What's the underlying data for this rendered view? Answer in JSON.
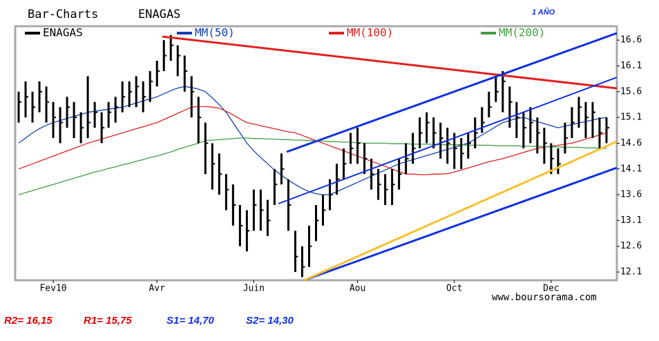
{
  "chart_data": {
    "type": "ohlc",
    "title": "Bar-Charts",
    "subtitle": "ENAGAS",
    "period": "1 AÑO",
    "source": "www.boursorama.com",
    "annotations": [
      {
        "text": "R2= 16,15",
        "color": "#e00000"
      },
      {
        "text": "R1= 15,75",
        "color": "#e00000"
      },
      {
        "text": "S1= 14,70",
        "color": "#1030e0"
      },
      {
        "text": "S2= 14,30",
        "color": "#1030e0"
      }
    ],
    "categories": [
      null,
      null,
      null,
      null,
      null,
      "Fev10",
      null,
      null,
      null,
      null,
      null,
      null,
      null,
      null,
      null,
      null,
      null,
      null,
      null,
      null,
      "Avr",
      null,
      null,
      null,
      null,
      null,
      null,
      null,
      null,
      null,
      null,
      null,
      null,
      null,
      "Juin",
      null,
      null,
      null,
      null,
      null,
      null,
      null,
      null,
      null,
      null,
      null,
      null,
      null,
      null,
      "Aou",
      null,
      null,
      null,
      null,
      null,
      null,
      null,
      null,
      null,
      null,
      null,
      null,
      null,
      "Oct",
      null,
      null,
      null,
      null,
      null,
      null,
      null,
      null,
      null,
      null,
      null,
      null,
      null,
      "Dec",
      null,
      null,
      null,
      null,
      null,
      null,
      null,
      null,
      null
    ],
    "series": [
      {
        "name": "ENAGAS",
        "color": "#000000",
        "values": [
          15.4,
          15.5,
          15.3,
          15.6,
          15.4,
          15.1,
          15.0,
          15.3,
          15.1,
          14.9,
          15.0,
          15.2,
          14.9,
          15.2,
          15.3,
          15.5,
          15.6,
          15.7,
          15.5,
          15.8,
          16.0,
          16.3,
          16.5,
          16.3,
          16.0,
          15.6,
          15.1,
          14.6,
          14.2,
          14.0,
          13.7,
          13.4,
          13.0,
          12.9,
          13.4,
          13.3,
          13.1,
          13.8,
          14.1,
          13.4,
          12.4,
          12.2,
          12.6,
          13.1,
          13.3,
          13.6,
          13.9,
          14.2,
          14.5,
          14.6,
          14.3,
          14.0,
          13.8,
          13.7,
          13.8,
          14.0,
          14.3,
          14.5,
          14.8,
          15.0,
          14.8,
          14.7,
          14.6,
          14.5,
          14.4,
          14.6,
          14.8,
          15.0,
          15.3,
          15.6,
          15.8,
          15.4,
          15.1,
          14.9,
          15.0,
          14.8,
          14.6,
          14.3,
          14.2,
          14.7,
          15.0,
          15.3,
          15.1,
          15.2,
          14.8,
          14.9,
          null
        ],
        "high": [
          15.6,
          15.8,
          15.6,
          15.8,
          15.7,
          15.4,
          15.3,
          15.5,
          15.4,
          15.2,
          15.9,
          15.4,
          15.2,
          15.4,
          15.5,
          15.8,
          15.8,
          15.9,
          15.8,
          16.0,
          16.2,
          16.6,
          16.7,
          16.5,
          16.3,
          15.9,
          15.5,
          15.0,
          14.6,
          14.4,
          14.0,
          13.8,
          13.4,
          13.3,
          13.7,
          13.7,
          13.5,
          14.1,
          14.4,
          13.9,
          12.9,
          12.6,
          13.0,
          13.4,
          13.6,
          13.9,
          14.2,
          14.5,
          14.8,
          14.9,
          14.6,
          14.3,
          14.1,
          14.0,
          14.1,
          14.3,
          14.6,
          14.8,
          15.1,
          15.2,
          15.1,
          15.0,
          14.9,
          14.8,
          14.7,
          14.8,
          15.1,
          15.3,
          15.6,
          15.9,
          16.0,
          15.7,
          15.4,
          15.2,
          15.3,
          15.1,
          14.9,
          14.6,
          14.5,
          15.0,
          15.3,
          15.5,
          15.4,
          15.4,
          15.1,
          15.1,
          null
        ],
        "low": [
          15.0,
          15.1,
          15.0,
          15.2,
          15.0,
          14.7,
          14.6,
          14.9,
          14.7,
          14.6,
          14.7,
          14.9,
          14.6,
          14.9,
          15.0,
          15.2,
          15.3,
          15.3,
          15.2,
          15.4,
          15.7,
          16.0,
          16.2,
          15.9,
          15.6,
          15.1,
          14.6,
          14.0,
          13.7,
          13.6,
          13.3,
          13.0,
          12.6,
          12.5,
          12.9,
          12.9,
          12.8,
          13.4,
          13.8,
          12.9,
          12.1,
          12.0,
          12.2,
          12.7,
          13.0,
          13.3,
          13.6,
          13.9,
          14.2,
          14.2,
          14.0,
          13.7,
          13.5,
          13.4,
          13.4,
          13.7,
          14.0,
          14.2,
          14.5,
          14.6,
          14.5,
          14.3,
          14.2,
          14.1,
          14.1,
          14.3,
          14.5,
          14.8,
          15.1,
          15.4,
          15.2,
          14.9,
          14.7,
          14.5,
          14.6,
          14.4,
          14.2,
          14.0,
          14.0,
          14.4,
          14.7,
          14.9,
          14.7,
          14.7,
          14.5,
          14.6,
          null
        ]
      },
      {
        "name": "MM(50)",
        "color": "#1040b0",
        "values": [
          14.6,
          14.7,
          14.8,
          14.88,
          14.95,
          15.0,
          15.04,
          15.08,
          15.12,
          15.16,
          15.2,
          15.22,
          15.24,
          15.26,
          15.28,
          15.3,
          15.34,
          15.38,
          15.42,
          15.46,
          15.5,
          15.56,
          15.62,
          15.67,
          15.7,
          15.68,
          15.65,
          15.6,
          15.48,
          15.35,
          15.2,
          15.0,
          14.8,
          14.6,
          14.45,
          14.32,
          14.2,
          14.08,
          13.98,
          13.88,
          13.8,
          13.72,
          13.66,
          13.62,
          13.6,
          13.6,
          13.66,
          13.72,
          13.78,
          13.84,
          13.9,
          13.96,
          14.02,
          14.08,
          14.14,
          14.2,
          14.24,
          14.28,
          14.32,
          14.36,
          14.4,
          14.44,
          14.48,
          14.52,
          14.56,
          14.6,
          14.68,
          14.76,
          14.84,
          14.92,
          15.0,
          15.04,
          15.08,
          15.1,
          15.06,
          15.02,
          14.98,
          14.94,
          14.9,
          14.93,
          14.96,
          14.99,
          15.02,
          15.05,
          15.08,
          15.1,
          null
        ]
      },
      {
        "name": "MM(100)",
        "color": "#e02020",
        "values": [
          14.1,
          14.15,
          14.2,
          14.25,
          14.3,
          14.35,
          14.4,
          14.45,
          14.5,
          14.55,
          14.6,
          14.64,
          14.68,
          14.72,
          14.76,
          14.8,
          14.84,
          14.88,
          14.92,
          14.96,
          15.0,
          15.06,
          15.12,
          15.18,
          15.24,
          15.3,
          15.31,
          15.31,
          15.3,
          15.28,
          15.22,
          15.15,
          15.07,
          15.0,
          14.97,
          14.94,
          14.91,
          14.88,
          14.85,
          14.82,
          14.8,
          14.75,
          14.7,
          14.65,
          14.6,
          14.55,
          14.5,
          14.45,
          14.4,
          14.35,
          14.3,
          14.25,
          14.2,
          14.15,
          14.1,
          14.05,
          14.0,
          14.0,
          13.99,
          13.99,
          14.0,
          14.0,
          14.01,
          14.04,
          14.08,
          14.12,
          14.16,
          14.2,
          14.24,
          14.27,
          14.3,
          14.34,
          14.38,
          14.42,
          14.46,
          14.5,
          14.52,
          14.54,
          14.56,
          14.58,
          14.6,
          14.64,
          14.68,
          14.72,
          14.76,
          14.8,
          null
        ]
      },
      {
        "name": "MM(200)",
        "color": "#40a040",
        "values": [
          13.6,
          13.64,
          13.68,
          13.72,
          13.76,
          13.8,
          13.84,
          13.88,
          13.92,
          13.96,
          14.0,
          14.04,
          14.07,
          14.11,
          14.14,
          14.18,
          14.21,
          14.25,
          14.28,
          14.32,
          14.35,
          14.39,
          14.43,
          14.48,
          14.52,
          14.56,
          14.6,
          14.65,
          14.66,
          14.67,
          14.68,
          14.69,
          14.7,
          14.7,
          14.69,
          14.69,
          14.68,
          14.68,
          14.67,
          14.67,
          14.66,
          14.66,
          14.65,
          14.65,
          14.64,
          14.63,
          14.63,
          14.62,
          14.62,
          14.61,
          14.6,
          14.6,
          14.6,
          14.6,
          14.59,
          14.59,
          14.59,
          14.58,
          14.58,
          14.58,
          14.58,
          14.57,
          14.57,
          14.57,
          14.57,
          14.56,
          14.56,
          14.56,
          14.56,
          14.55,
          14.55,
          14.55,
          14.55,
          14.54,
          14.54,
          14.54,
          14.53,
          14.53,
          14.53,
          14.52,
          14.52,
          14.52,
          14.51,
          14.51,
          14.5,
          14.5,
          null
        ]
      }
    ],
    "ylim": [
      11.94,
      16.87
    ],
    "yticks": [
      16.6,
      16.1,
      15.6,
      15.1,
      14.6,
      14.1,
      13.6,
      13.1,
      12.6,
      12.1
    ],
    "grid": false
  }
}
